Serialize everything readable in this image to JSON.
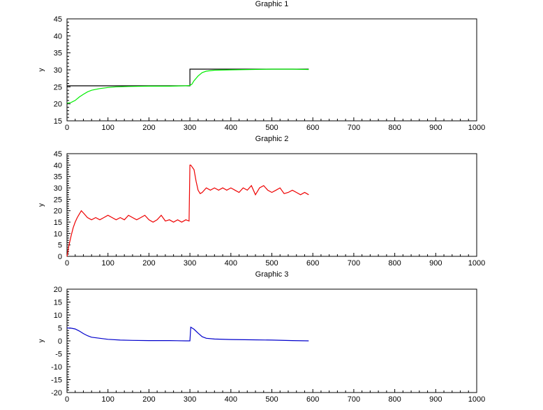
{
  "chart_data": [
    {
      "type": "line",
      "title": "Graphic 1",
      "xlabel": "",
      "ylabel": "y",
      "xlim": [
        0,
        1000
      ],
      "ylim": [
        15,
        45
      ],
      "xticks": [
        0,
        100,
        200,
        300,
        400,
        500,
        600,
        700,
        800,
        900,
        1000
      ],
      "yticks": [
        15,
        20,
        25,
        30,
        35,
        40,
        45
      ],
      "grid": false,
      "series": [
        {
          "color": "#000000",
          "x": [
            0,
            300,
            300,
            590
          ],
          "y": [
            25.3,
            25.3,
            30.2,
            30.2
          ]
        },
        {
          "color": "#00ee00",
          "x": [
            0,
            10,
            20,
            30,
            40,
            50,
            60,
            80,
            100,
            120,
            150,
            200,
            250,
            290,
            300,
            305,
            310,
            320,
            330,
            340,
            360,
            400,
            450,
            500,
            550,
            590
          ],
          "y": [
            20.2,
            20.4,
            21.0,
            22.0,
            22.8,
            23.5,
            24.0,
            24.5,
            24.8,
            25.0,
            25.1,
            25.2,
            25.2,
            25.3,
            25.4,
            25.8,
            26.8,
            28.2,
            29.2,
            29.6,
            29.9,
            30.0,
            30.1,
            30.2,
            30.2,
            30.1
          ]
        }
      ]
    },
    {
      "type": "line",
      "title": "Graphic 2",
      "xlabel": "",
      "ylabel": "y",
      "xlim": [
        0,
        1000
      ],
      "ylim": [
        0,
        45
      ],
      "xticks": [
        0,
        100,
        200,
        300,
        400,
        500,
        600,
        700,
        800,
        900,
        1000
      ],
      "yticks": [
        0,
        5,
        10,
        15,
        20,
        25,
        30,
        35,
        40,
        45
      ],
      "grid": false,
      "series": [
        {
          "color": "#ee0000",
          "x": [
            0,
            5,
            10,
            15,
            20,
            25,
            30,
            35,
            40,
            50,
            60,
            70,
            80,
            90,
            100,
            110,
            120,
            130,
            140,
            150,
            160,
            170,
            180,
            190,
            200,
            210,
            220,
            230,
            240,
            250,
            260,
            270,
            280,
            290,
            298,
            300,
            302,
            310,
            315,
            320,
            325,
            330,
            340,
            350,
            360,
            370,
            380,
            390,
            400,
            410,
            420,
            430,
            440,
            450,
            460,
            470,
            480,
            490,
            500,
            510,
            520,
            530,
            540,
            550,
            560,
            570,
            580,
            590
          ],
          "y": [
            0,
            5,
            9,
            12.5,
            15,
            17,
            18.5,
            20,
            19,
            17,
            16,
            17,
            16,
            17,
            18,
            17,
            16,
            17,
            16,
            18,
            17,
            16,
            17,
            18,
            16,
            15,
            16,
            18,
            15.5,
            16,
            15,
            16,
            15,
            16,
            15.5,
            40,
            40,
            38,
            33,
            29,
            27.5,
            28,
            30,
            29,
            30,
            29,
            30,
            29,
            30,
            29,
            28,
            30,
            29,
            31,
            27,
            30,
            31,
            29,
            28,
            29,
            30,
            27.5,
            28,
            29,
            28,
            27,
            28,
            27
          ]
        }
      ]
    },
    {
      "type": "line",
      "title": "Graphic 3",
      "xlabel": "",
      "ylabel": "y",
      "xlim": [
        0,
        1000
      ],
      "ylim": [
        -20,
        20
      ],
      "xticks": [
        0,
        100,
        200,
        300,
        400,
        500,
        600,
        700,
        800,
        900,
        1000
      ],
      "yticks": [
        -20,
        -15,
        -10,
        -5,
        0,
        5,
        10,
        15,
        20
      ],
      "grid": false,
      "series": [
        {
          "color": "#0000cc",
          "x": [
            0,
            10,
            20,
            30,
            40,
            50,
            60,
            80,
            100,
            130,
            160,
            200,
            250,
            290,
            300,
            302,
            310,
            320,
            330,
            340,
            360,
            400,
            450,
            500,
            550,
            590
          ],
          "y": [
            5,
            4.9,
            4.6,
            3.8,
            2.8,
            2.0,
            1.4,
            1.0,
            0.6,
            0.3,
            0.2,
            0.1,
            0.1,
            0.0,
            0.0,
            5.3,
            4.5,
            3.0,
            1.6,
            1.0,
            0.7,
            0.5,
            0.4,
            0.3,
            0.1,
            0.0
          ]
        }
      ]
    }
  ]
}
